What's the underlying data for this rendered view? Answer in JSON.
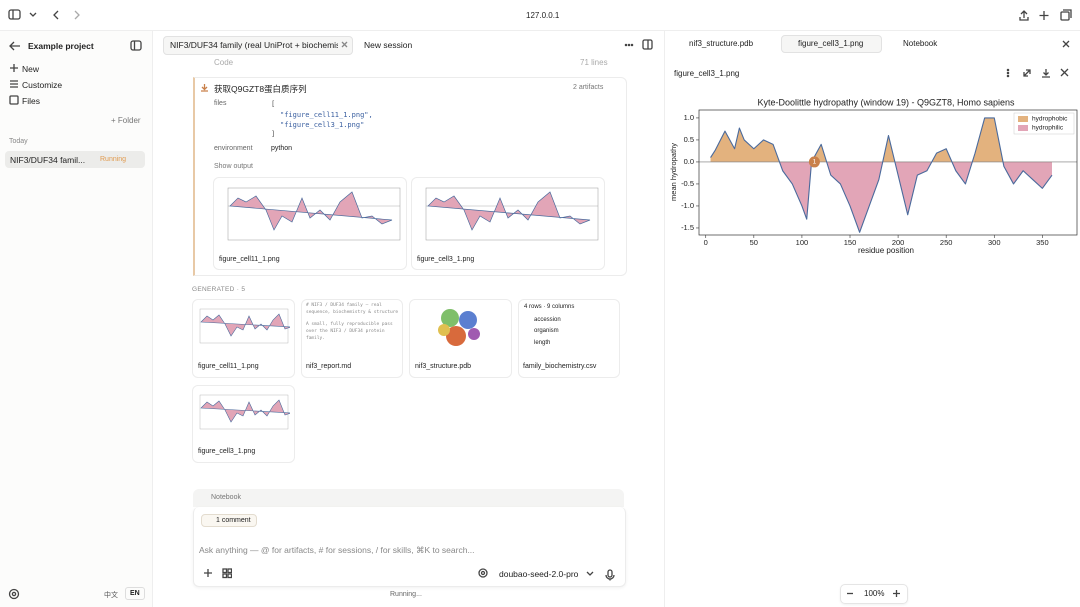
{
  "browser": {
    "url": "127.0.0.1"
  },
  "sidebar": {
    "project": "Example project",
    "items": [
      "New",
      "Customize",
      "Files"
    ],
    "folder": "+ Folder",
    "section": "Today",
    "session": "NIF3/DUF34 famil...",
    "status": "Running",
    "languages": [
      "中文",
      "EN"
    ]
  },
  "tabs": [
    "NIF3/DUF34 family (real UniProt + biochemist",
    "New session"
  ],
  "message": {
    "code_label": "Code",
    "code_lines": "71 lines",
    "step": "获取Q9GZT8蛋白质序列",
    "artifacts": "2 artifacts",
    "files_label": "files",
    "files_code": [
      "[",
      "\"figure_cell11_1.png\",",
      "\"figure_cell3_1.png\"",
      "]"
    ],
    "env_label": "environment",
    "env": "python",
    "show_output": "Show output",
    "outputs": [
      "figure_cell11_1.png",
      "figure_cell3_1.png"
    ]
  },
  "generated": {
    "heading": "GENERATED · 5",
    "cards": [
      {
        "name": "figure_cell11_1.png"
      },
      {
        "name": "nif3_report.md",
        "preview": [
          "# NIF3 / DUF34 family — real",
          "sequence, biochemistry & structure",
          "A small, fully reproducible pass",
          "over the NIF3 / DUF34 protein",
          "family."
        ]
      },
      {
        "name": "nif3_structure.pdb"
      },
      {
        "name": "family_biochemistry.csv",
        "preview": [
          "4 rows · 9 columns",
          "accession",
          "organism",
          "length"
        ]
      },
      {
        "name": "figure_cell3_1.png"
      }
    ]
  },
  "composer": {
    "tab": "Notebook",
    "comment": "1 comment",
    "placeholder": "Ask anything — @ for artifacts, # for sessions, / for skills, ⌘K to search...",
    "model": "doubao-seed-2.0-pro",
    "status": "Running..."
  },
  "viewer": {
    "tabs": [
      "nif3_structure.pdb",
      "figure_cell3_1.png",
      "Notebook"
    ],
    "file": "figure_cell3_1.png",
    "zoom": "100%"
  },
  "chart_data": {
    "type": "line",
    "title": "Kyte-Doolittle hydropathy (window 19) - Q9GZT8, Homo sapiens",
    "xlabel": "residue position",
    "ylabel": "mean hydropathy",
    "x": [
      5,
      10,
      20,
      30,
      35,
      40,
      50,
      60,
      70,
      80,
      90,
      100,
      105,
      110,
      120,
      130,
      140,
      150,
      160,
      170,
      180,
      190,
      200,
      210,
      220,
      230,
      240,
      250,
      260,
      270,
      280,
      290,
      300,
      310,
      320,
      330,
      340,
      350,
      360
    ],
    "series": [
      {
        "name": "hydropathy",
        "color": "#4a6a9c",
        "values": [
          0.1,
          0.27,
          0.7,
          0.3,
          0.77,
          0.5,
          0.3,
          0.5,
          0.4,
          -0.2,
          -0.5,
          -1.0,
          -1.3,
          0,
          0.4,
          -0.3,
          -0.5,
          -1.0,
          -1.6,
          -1.0,
          -0.4,
          0.6,
          -0.3,
          -1.2,
          -0.3,
          -0.2,
          0.2,
          0.3,
          -0.2,
          -0.5,
          0.2,
          1.0,
          1.0,
          -0.1,
          -0.5,
          -0.2,
          -0.4,
          -0.6,
          -0.3
        ]
      }
    ],
    "fills": [
      {
        "name": "hydrophobic",
        "color": "#e3b27e"
      },
      {
        "name": "hydrophilic",
        "color": "#e2a5b7"
      }
    ],
    "annotation": {
      "x": 113,
      "y": 0,
      "label": "1",
      "color": "#c9804a"
    },
    "xlim": [
      -7,
      386
    ],
    "ylim": [
      -1.66,
      1.18
    ],
    "xticks": [
      0,
      50,
      100,
      150,
      200,
      250,
      300,
      350
    ],
    "yticks": [
      {
        "value": 1,
        "label": "1.0"
      },
      {
        "value": 0.5,
        "label": "0.5"
      },
      {
        "value": 0,
        "label": "0.0"
      },
      {
        "value": -0.5,
        "label": "-0.5"
      },
      {
        "value": -1,
        "label": "-1.0"
      },
      {
        "value": -1.5,
        "label": "-1.5"
      }
    ],
    "legend": "upper right"
  }
}
